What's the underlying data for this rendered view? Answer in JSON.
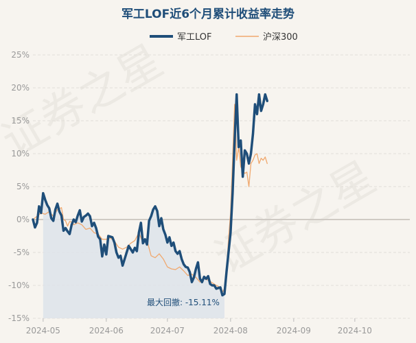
{
  "chart_data": {
    "type": "line",
    "title": "军工LOF近6个月累计收益率走势",
    "xlabel": "",
    "ylabel": "",
    "ylim": [
      -15,
      25
    ],
    "yticks": [
      -15,
      -10,
      -5,
      0,
      5,
      10,
      15,
      20,
      25
    ],
    "ytick_labels": [
      "-15%",
      "-10%",
      "-5%",
      "0%",
      "5%",
      "10%",
      "15%",
      "20%",
      "25%"
    ],
    "x_months": [
      {
        "label": "2024-05",
        "day": 5
      },
      {
        "label": "2024-06",
        "day": 36
      },
      {
        "label": "2024-07",
        "day": 66
      },
      {
        "label": "2024-08",
        "day": 97
      },
      {
        "label": "2024-09",
        "day": 128
      },
      {
        "label": "2024-10",
        "day": 158
      }
    ],
    "x_range": [
      0,
      185
    ],
    "legend_position": "top-center",
    "series": [
      {
        "name": "军工LOF",
        "color": "#1f4e79",
        "points": [
          [
            0,
            0
          ],
          [
            1,
            -1.2
          ],
          [
            2,
            -0.5
          ],
          [
            3,
            2.0
          ],
          [
            4,
            1.0
          ],
          [
            5,
            4.0
          ],
          [
            6,
            3.0
          ],
          [
            7,
            2.2
          ],
          [
            8,
            1.7
          ],
          [
            9,
            0.2
          ],
          [
            10,
            -0.2
          ],
          [
            11,
            1.5
          ],
          [
            12,
            2.4
          ],
          [
            13,
            1.2
          ],
          [
            14,
            0.6
          ],
          [
            15,
            -1.7
          ],
          [
            16,
            -1.3
          ],
          [
            17,
            -1.8
          ],
          [
            18,
            -2.2
          ],
          [
            19,
            -0.8
          ],
          [
            20,
            0.0
          ],
          [
            21,
            -0.4
          ],
          [
            22,
            0.6
          ],
          [
            23,
            1.4
          ],
          [
            24,
            -0.3
          ],
          [
            25,
            0.4
          ],
          [
            26,
            0.6
          ],
          [
            27,
            0.9
          ],
          [
            28,
            0.5
          ],
          [
            29,
            -1.0
          ],
          [
            30,
            -0.5
          ],
          [
            31,
            -1.3
          ],
          [
            32,
            -2.6
          ],
          [
            33,
            -3.0
          ],
          [
            34,
            -5.6
          ],
          [
            35,
            -3.8
          ],
          [
            36,
            -5.3
          ],
          [
            37,
            -2.5
          ],
          [
            38,
            -2.6
          ],
          [
            39,
            -2.7
          ],
          [
            40,
            -3.5
          ],
          [
            41,
            -5.0
          ],
          [
            42,
            -5.8
          ],
          [
            43,
            -5.5
          ],
          [
            44,
            -7.0
          ],
          [
            45,
            -6.0
          ],
          [
            46,
            -5.0
          ],
          [
            47,
            -4.0
          ],
          [
            48,
            -4.5
          ],
          [
            49,
            -5.0
          ],
          [
            50,
            -4.3
          ],
          [
            51,
            -4.8
          ],
          [
            52,
            -2.0
          ],
          [
            53,
            -0.5
          ],
          [
            54,
            -3.6
          ],
          [
            55,
            -3.0
          ],
          [
            56,
            -3.8
          ],
          [
            57,
            -0.2
          ],
          [
            58,
            0.5
          ],
          [
            59,
            1.5
          ],
          [
            60,
            2.0
          ],
          [
            61,
            1.3
          ],
          [
            62,
            -1.0
          ],
          [
            63,
            0.2
          ],
          [
            64,
            -1.5
          ],
          [
            65,
            -2.3
          ],
          [
            66,
            -3.5
          ],
          [
            67,
            -2.7
          ],
          [
            68,
            -4.0
          ],
          [
            69,
            -3.5
          ],
          [
            70,
            -4.8
          ],
          [
            71,
            -5.2
          ],
          [
            72,
            -4.8
          ],
          [
            73,
            -6.0
          ],
          [
            74,
            -6.8
          ],
          [
            75,
            -7.2
          ],
          [
            76,
            -7.3
          ],
          [
            77,
            -8.0
          ],
          [
            78,
            -9.5
          ],
          [
            79,
            -8.8
          ],
          [
            80,
            -7.5
          ],
          [
            81,
            -6.5
          ],
          [
            82,
            -9.0
          ],
          [
            83,
            -9.5
          ],
          [
            84,
            -8.7
          ],
          [
            85,
            -9.0
          ],
          [
            86,
            -8.6
          ],
          [
            87,
            -9.8
          ],
          [
            88,
            -10.0
          ],
          [
            89,
            -10.0
          ],
          [
            90,
            -10.5
          ],
          [
            91,
            -10.4
          ],
          [
            92,
            -10.3
          ],
          [
            93,
            -11.5
          ],
          [
            94,
            -11.3
          ],
          [
            95,
            -8.0
          ],
          [
            96,
            -5.0
          ],
          [
            97,
            -2.0
          ],
          [
            98,
            4.0
          ],
          [
            99,
            12.0
          ],
          [
            100,
            19.0
          ],
          [
            101,
            11.0
          ],
          [
            102,
            12.0
          ],
          [
            103,
            6.5
          ],
          [
            104,
            10.5
          ],
          [
            105,
            10.0
          ],
          [
            106,
            8.5
          ],
          [
            107,
            10.0
          ],
          [
            108,
            13.0
          ],
          [
            109,
            17.5
          ],
          [
            110,
            16.0
          ],
          [
            111,
            19.0
          ],
          [
            112,
            16.5
          ],
          [
            113,
            17.5
          ],
          [
            114,
            19.0
          ],
          [
            115,
            18.0
          ]
        ]
      },
      {
        "name": "沪深300",
        "color": "#f0a86e",
        "points": [
          [
            0,
            0
          ],
          [
            2,
            0.5
          ],
          [
            4,
            1.0
          ],
          [
            6,
            0.8
          ],
          [
            8,
            1.2
          ],
          [
            10,
            0.5
          ],
          [
            12,
            1.5
          ],
          [
            14,
            1.8
          ],
          [
            15,
            0.0
          ],
          [
            16,
            -0.2
          ],
          [
            17,
            -1.0
          ],
          [
            18,
            -0.3
          ],
          [
            19,
            -0.4
          ],
          [
            20,
            -0.8
          ],
          [
            22,
            -0.5
          ],
          [
            24,
            -0.8
          ],
          [
            26,
            -1.5
          ],
          [
            28,
            -1.3
          ],
          [
            30,
            -2.0
          ],
          [
            32,
            -2.2
          ],
          [
            34,
            -3.0
          ],
          [
            36,
            -3.0
          ],
          [
            38,
            -2.8
          ],
          [
            40,
            -3.3
          ],
          [
            42,
            -4.2
          ],
          [
            44,
            -4.5
          ],
          [
            46,
            -4.2
          ],
          [
            48,
            -3.6
          ],
          [
            50,
            -3.2
          ],
          [
            52,
            -2.0
          ],
          [
            54,
            -3.5
          ],
          [
            56,
            -3.2
          ],
          [
            58,
            -5.5
          ],
          [
            60,
            -5.8
          ],
          [
            62,
            -5.2
          ],
          [
            64,
            -6.0
          ],
          [
            66,
            -7.2
          ],
          [
            68,
            -7.5
          ],
          [
            70,
            -7.6
          ],
          [
            72,
            -7.2
          ],
          [
            74,
            -7.8
          ],
          [
            76,
            -8.5
          ],
          [
            78,
            -8.3
          ],
          [
            80,
            -8.8
          ],
          [
            82,
            -9.5
          ],
          [
            84,
            -9.0
          ],
          [
            86,
            -9.2
          ],
          [
            88,
            -9.6
          ],
          [
            90,
            -10.0
          ],
          [
            92,
            -10.3
          ],
          [
            93,
            -11.0
          ],
          [
            94,
            -10.5
          ],
          [
            95,
            -8.0
          ],
          [
            96,
            -3.0
          ],
          [
            97,
            1.0
          ],
          [
            98,
            9.0
          ],
          [
            99,
            17.5
          ],
          [
            100,
            9.0
          ],
          [
            101,
            11.0
          ],
          [
            102,
            8.0
          ],
          [
            103,
            7.5
          ],
          [
            104,
            7.0
          ],
          [
            105,
            7.2
          ],
          [
            106,
            5.0
          ],
          [
            107,
            8.5
          ],
          [
            108,
            9.0
          ],
          [
            109,
            9.8
          ],
          [
            110,
            10.0
          ],
          [
            111,
            8.5
          ],
          [
            112,
            9.3
          ],
          [
            113,
            9.0
          ],
          [
            114,
            9.5
          ],
          [
            115,
            8.5
          ]
        ]
      }
    ],
    "drawdown": {
      "label": "最大回撤: -15.11%",
      "start": 5,
      "end": 94,
      "fill": "#dde3ea"
    }
  },
  "watermark": {
    "text": "证券之星"
  }
}
